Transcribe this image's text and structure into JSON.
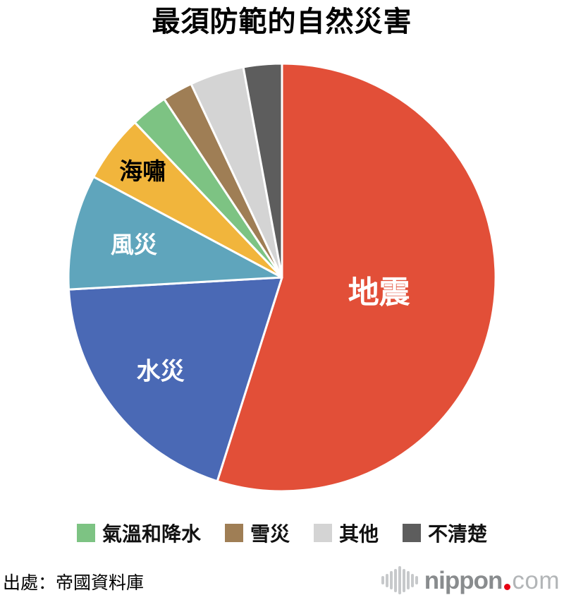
{
  "title": "最須防範的自然災害",
  "source": "出處：帝國資料庫",
  "logo": {
    "icon": "audio-wave-icon",
    "text_bold": "nippon",
    "text_light": "com",
    "dot_color": "#E60012",
    "bold_color": "#898C8E",
    "light_color": "#B2B5B7",
    "wave_color": "#C7C9CB"
  },
  "chart_data": {
    "type": "pie",
    "title": "最須防範的自然災害",
    "unit": "percent",
    "start_angle_deg": 0,
    "direction": "clockwise",
    "legend_position": "bottom",
    "background": "#ffffff",
    "separator_color": "#ffffff",
    "slices": [
      {
        "label": "地震",
        "value_pct": 54.9,
        "color": "#E24F38",
        "in_pie_label": {
          "show": true,
          "color": "#ffffff",
          "size": 44,
          "r": 0.46
        }
      },
      {
        "label": "水災",
        "value_pct": 19.2,
        "color": "#4A69B5",
        "in_pie_label": {
          "show": true,
          "color": "#ffffff",
          "size": 34,
          "r": 0.72
        }
      },
      {
        "label": "風災",
        "value_pct": 8.7,
        "color": "#5FA5BC",
        "in_pie_label": {
          "show": true,
          "color": "#ffffff",
          "size": 33,
          "r": 0.71
        }
      },
      {
        "label": "海嘯",
        "value_pct": 5.1,
        "color": "#F1B53C",
        "in_pie_label": {
          "show": true,
          "color": "#000000",
          "size": 33,
          "r": 0.82
        }
      },
      {
        "label": "氣溫和降水",
        "value_pct": 2.8,
        "color": "#7DC383",
        "in_pie_label": {
          "show": false
        }
      },
      {
        "label": "雪災",
        "value_pct": 2.3,
        "color": "#9F7E55",
        "in_pie_label": {
          "show": false
        }
      },
      {
        "label": "其他",
        "value_pct": 4.1,
        "color": "#D4D4D4",
        "in_pie_label": {
          "show": false
        }
      },
      {
        "label": "不清楚",
        "value_pct": 2.9,
        "color": "#5D5D5D",
        "in_pie_label": {
          "show": false
        }
      }
    ]
  }
}
